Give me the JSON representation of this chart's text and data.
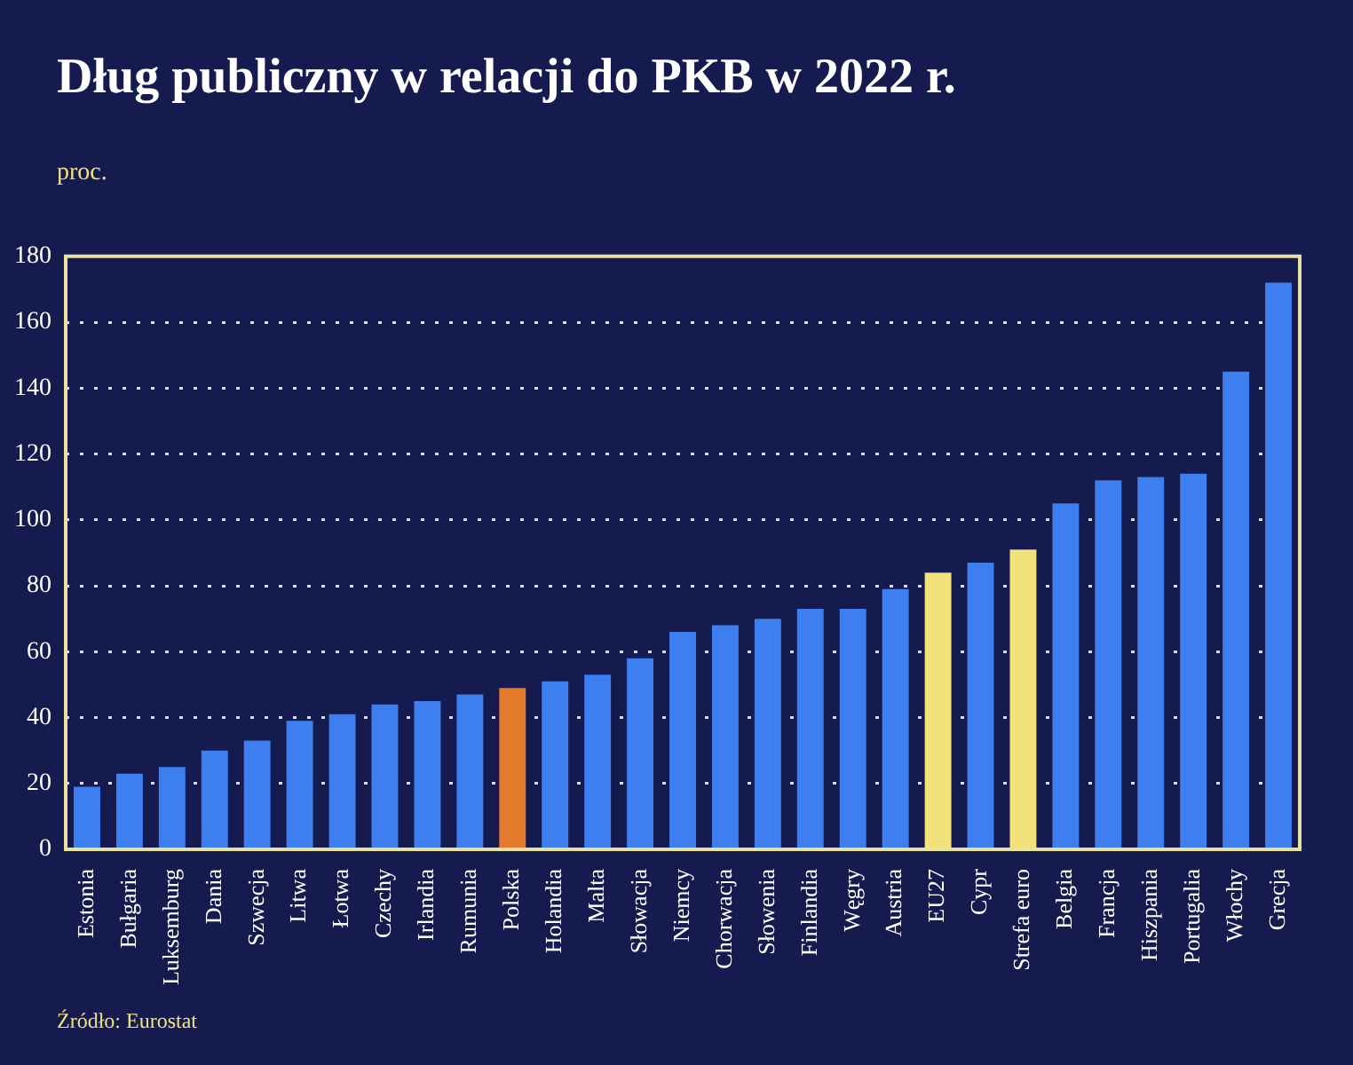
{
  "chart_data": {
    "type": "bar",
    "title": "Dług publiczny w relacji do PKB w 2022 r.",
    "ylabel": "proc.",
    "categories": [
      "Estonia",
      "Bułgaria",
      "Luksemburg",
      "Dania",
      "Szwecja",
      "Litwa",
      "Łotwa",
      "Czechy",
      "Irlandia",
      "Rumunia",
      "Polska",
      "Holandia",
      "Malta",
      "Słowacja",
      "Niemcy",
      "Chorwacja",
      "Słowenia",
      "Finlandia",
      "Węgry",
      "Austria",
      "EU27",
      "Cypr",
      "Strefa euro",
      "Belgia",
      "Francja",
      "Hiszpania",
      "Portugalia",
      "Włochy",
      "Grecja"
    ],
    "values": [
      19,
      23,
      25,
      30,
      33,
      39,
      41,
      44,
      45,
      47,
      49,
      51,
      53,
      58,
      66,
      68,
      70,
      73,
      73,
      79,
      84,
      87,
      91,
      105,
      112,
      113,
      114,
      145,
      172
    ],
    "colors": [
      "#3d7ff0",
      "#3d7ff0",
      "#3d7ff0",
      "#3d7ff0",
      "#3d7ff0",
      "#3d7ff0",
      "#3d7ff0",
      "#3d7ff0",
      "#3d7ff0",
      "#3d7ff0",
      "#e37a2c",
      "#3d7ff0",
      "#3d7ff0",
      "#3d7ff0",
      "#3d7ff0",
      "#3d7ff0",
      "#3d7ff0",
      "#3d7ff0",
      "#3d7ff0",
      "#3d7ff0",
      "#f2e27c",
      "#3d7ff0",
      "#f2e27c",
      "#3d7ff0",
      "#3d7ff0",
      "#3d7ff0",
      "#3d7ff0",
      "#3d7ff0",
      "#3d7ff0"
    ],
    "ylim": [
      0,
      180
    ],
    "yticks": [
      0,
      20,
      40,
      60,
      80,
      100,
      120,
      140,
      160,
      180
    ],
    "grid": "y",
    "legend": false,
    "annotations": [
      "Źródło: Eurostat"
    ]
  }
}
